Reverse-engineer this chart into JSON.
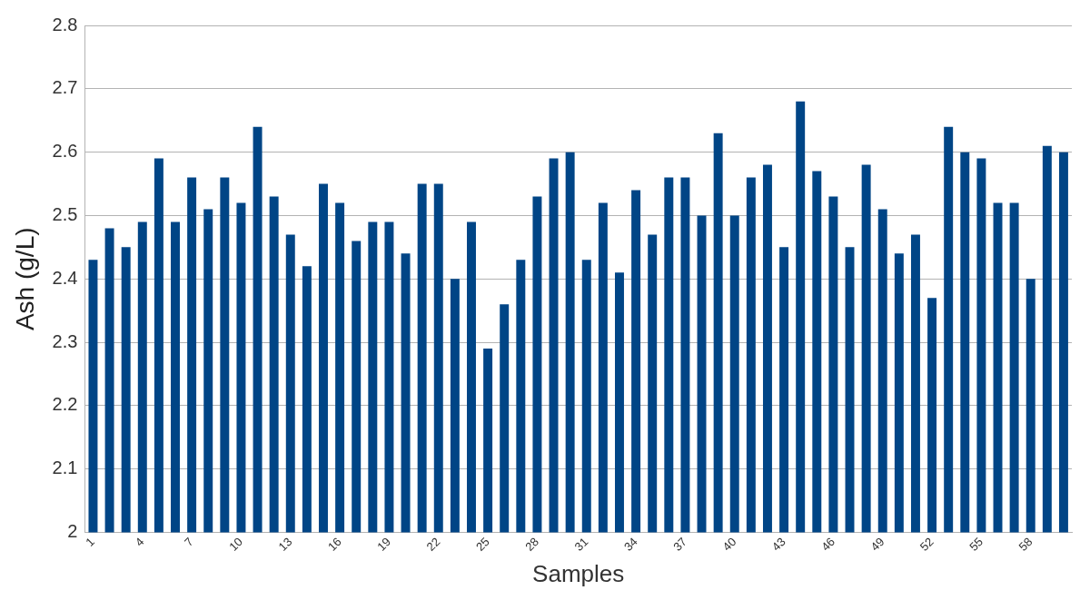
{
  "chart_data": {
    "type": "bar",
    "xlabel": "Samples",
    "ylabel": "Ash (g/L)",
    "categories": [
      "1",
      null,
      null,
      "4",
      null,
      null,
      "7",
      null,
      null,
      "10",
      null,
      null,
      "13",
      null,
      null,
      "16",
      null,
      null,
      "19",
      null,
      null,
      "22",
      null,
      null,
      "25",
      null,
      null,
      "28",
      null,
      null,
      "31",
      null,
      null,
      "34",
      null,
      null,
      "37",
      null,
      null,
      "40",
      null,
      null,
      "43",
      null,
      null,
      "46",
      null,
      null,
      "49",
      null,
      null,
      "52",
      null,
      null,
      "55",
      null,
      null,
      "58",
      null,
      null
    ],
    "values": [
      2.43,
      2.48,
      2.45,
      2.49,
      2.59,
      2.49,
      2.56,
      2.51,
      2.56,
      2.52,
      2.64,
      2.53,
      2.47,
      2.42,
      2.55,
      2.52,
      2.46,
      2.49,
      2.49,
      2.44,
      2.55,
      2.55,
      2.4,
      2.49,
      2.29,
      2.36,
      2.43,
      2.53,
      2.59,
      2.6,
      2.43,
      2.52,
      2.41,
      2.54,
      2.47,
      2.56,
      2.56,
      2.5,
      2.63,
      2.5,
      2.56,
      2.58,
      2.45,
      2.68,
      2.57,
      2.53,
      2.45,
      2.58,
      2.51,
      2.44,
      2.47,
      2.37,
      2.64,
      2.6,
      2.59,
      2.52,
      2.52,
      2.4,
      2.61,
      2.6
    ],
    "color": "#004586",
    "ylim": [
      2,
      2.8
    ],
    "yticks": [
      2,
      2.1,
      2.2,
      2.3,
      2.4,
      2.5,
      2.6,
      2.7,
      2.8
    ],
    "grid": "y"
  }
}
